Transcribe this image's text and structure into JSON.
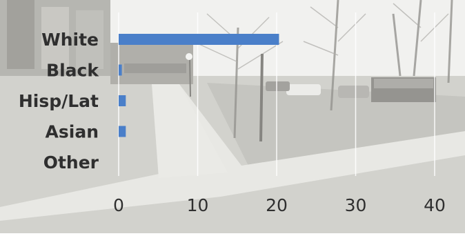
{
  "chart_data": {
    "type": "bar",
    "orientation": "horizontal",
    "categories": [
      "White",
      "Black",
      "Hisp/Lat",
      "Asian",
      "Other"
    ],
    "values": [
      20.3,
      0.4,
      0.9,
      0.9,
      0
    ],
    "xlim": [
      0,
      40
    ],
    "xticks": [
      0,
      10,
      20,
      30,
      40
    ],
    "tick_labels": [
      "0",
      "10",
      "20",
      "30",
      "40"
    ],
    "grid": true,
    "bar_color": "#4a7fc9",
    "text_color": "#2f2f2f",
    "background": "faded street photo with apartment building, trees and walkway"
  },
  "colors": {
    "grid": "#ffffff",
    "photo_tint": "#d9d9d4"
  }
}
